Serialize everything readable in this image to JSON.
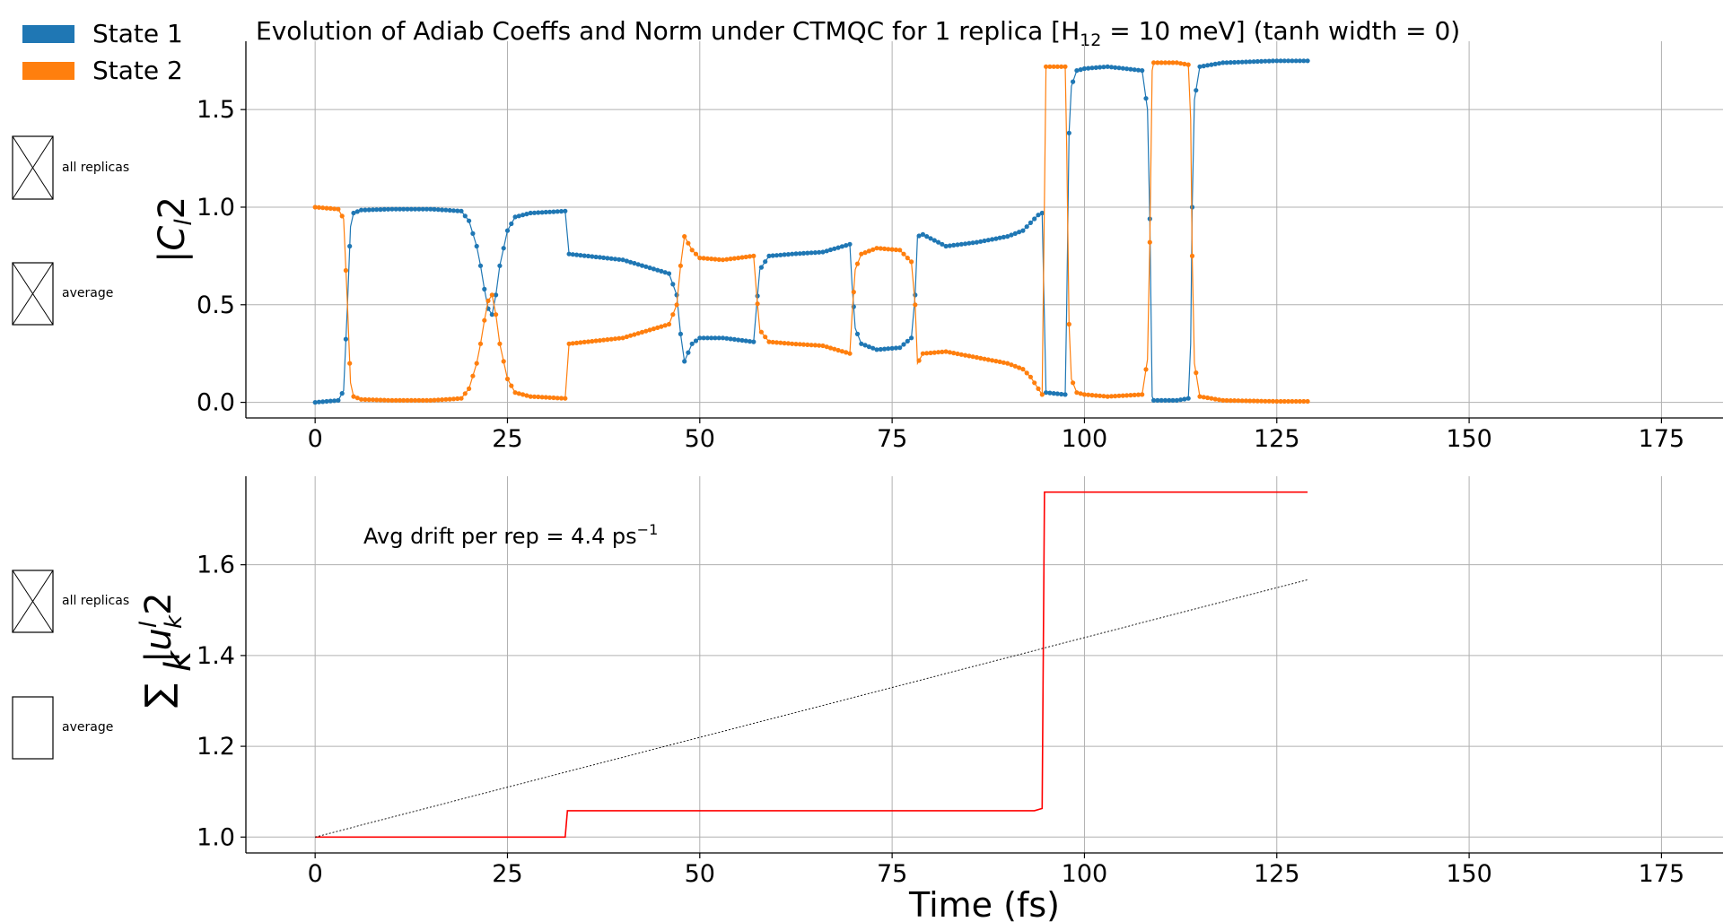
{
  "legend": [
    {
      "label": "State 1",
      "color": "#1f77b4"
    },
    {
      "label": "State 2",
      "color": "#ff7f0e"
    }
  ],
  "checkboxes": {
    "top": [
      {
        "label": "all replicas",
        "checked": true
      },
      {
        "label": "average",
        "checked": true
      }
    ],
    "bottom": [
      {
        "label": "all replicas",
        "checked": true
      },
      {
        "label": "average",
        "checked": false
      }
    ]
  },
  "colors": {
    "state1": "#1f77b4",
    "state2": "#ff7f0e",
    "norm": "#ff0000",
    "trend": "#000000"
  },
  "chart_data": [
    {
      "type": "line",
      "title_main": "Evolution of Adiab Coeffs and Norm under CTMQC for 1 replica [H",
      "title_sub": "12",
      "title_rest": " = 10 meV]   (tanh width = 0)",
      "ylabel_base": "|C",
      "ylabel_sub": "l",
      "ylabel_sup": "2",
      "xlim": [
        -9,
        183
      ],
      "ylim": [
        -0.08,
        1.85
      ],
      "xticks": [
        0,
        25,
        50,
        75,
        100,
        125,
        150,
        175
      ],
      "yticks": [
        0.0,
        0.5,
        1.0,
        1.5
      ],
      "ytick_labels": [
        "0.0",
        "0.5",
        "1.0",
        "1.5"
      ],
      "grid": true,
      "markers": true,
      "series": [
        {
          "name": "State 1",
          "x": [
            0,
            3,
            3.7,
            4.2,
            4.6,
            5,
            6,
            10,
            15,
            19,
            20,
            21,
            21.5,
            22,
            22.5,
            23,
            23.5,
            24,
            25,
            26,
            28,
            32.5,
            33,
            40,
            46,
            47,
            47.5,
            48,
            49,
            50,
            53,
            57,
            57.4,
            57.8,
            59,
            62,
            66,
            69.5,
            69.8,
            70.2,
            71,
            73,
            76,
            77.5,
            78,
            78.3,
            79,
            82,
            86,
            90,
            92,
            93,
            94,
            94.5,
            95,
            97.5,
            97.7,
            98,
            98.3,
            99,
            100,
            103,
            107.5,
            108.2,
            108.5,
            108.8,
            109,
            112,
            113.5,
            113.8,
            114,
            114.3,
            115,
            118,
            125,
            129
          ],
          "y": [
            0.0,
            0.01,
            0.06,
            0.5,
            0.9,
            0.97,
            0.985,
            0.99,
            0.99,
            0.98,
            0.93,
            0.8,
            0.7,
            0.58,
            0.48,
            0.45,
            0.55,
            0.7,
            0.88,
            0.95,
            0.97,
            0.98,
            0.76,
            0.73,
            0.66,
            0.55,
            0.35,
            0.21,
            0.3,
            0.33,
            0.33,
            0.31,
            0.5,
            0.68,
            0.75,
            0.76,
            0.77,
            0.81,
            0.6,
            0.38,
            0.3,
            0.27,
            0.28,
            0.33,
            0.55,
            0.85,
            0.86,
            0.8,
            0.82,
            0.85,
            0.88,
            0.92,
            0.96,
            0.97,
            0.05,
            0.04,
            0.5,
            1.38,
            1.62,
            1.7,
            1.71,
            1.72,
            1.7,
            1.5,
            0.94,
            0.03,
            0.01,
            0.01,
            0.02,
            0.3,
            1.0,
            1.55,
            1.72,
            1.74,
            1.75,
            1.75
          ]
        },
        {
          "name": "State 2",
          "x": [
            0,
            3,
            3.7,
            4.2,
            4.6,
            5,
            6,
            10,
            15,
            19,
            20,
            21,
            21.5,
            22,
            22.5,
            23,
            23.5,
            24,
            25,
            26,
            28,
            32.5,
            33,
            40,
            46,
            47,
            47.5,
            48,
            49,
            50,
            53,
            57,
            57.4,
            57.8,
            59,
            62,
            66,
            69.5,
            69.8,
            70.2,
            71,
            73,
            76,
            77.5,
            78,
            78.3,
            79,
            82,
            86,
            90,
            92,
            93,
            94,
            94.5,
            95,
            97.5,
            97.7,
            98,
            98.3,
            99,
            100,
            103,
            107.5,
            108.2,
            108.5,
            108.8,
            109,
            112,
            113.5,
            113.8,
            114,
            114.3,
            115,
            118,
            125,
            129
          ],
          "y": [
            1.0,
            0.99,
            0.94,
            0.5,
            0.1,
            0.03,
            0.015,
            0.01,
            0.01,
            0.02,
            0.07,
            0.2,
            0.3,
            0.42,
            0.52,
            0.55,
            0.45,
            0.3,
            0.12,
            0.05,
            0.03,
            0.02,
            0.3,
            0.33,
            0.4,
            0.5,
            0.7,
            0.85,
            0.78,
            0.74,
            0.73,
            0.75,
            0.55,
            0.37,
            0.31,
            0.3,
            0.29,
            0.25,
            0.45,
            0.68,
            0.76,
            0.79,
            0.78,
            0.72,
            0.5,
            0.2,
            0.25,
            0.26,
            0.23,
            0.2,
            0.17,
            0.13,
            0.07,
            0.04,
            1.72,
            1.72,
            1.3,
            0.4,
            0.12,
            0.05,
            0.04,
            0.03,
            0.04,
            0.22,
            0.82,
            1.7,
            1.74,
            1.74,
            1.73,
            1.45,
            0.75,
            0.2,
            0.03,
            0.01,
            0.005,
            0.005
          ]
        }
      ]
    },
    {
      "type": "line",
      "xlabel": "Time (fs)",
      "ylabel_sum": "∑",
      "ylabel_subk": "k",
      "ylabel_base": "|u",
      "ylabel_sup_l": "l",
      "ylabel_sub_k": "k",
      "ylabel_sup2": "2",
      "annotation_main": "Avg drift per rep = 4.4 ps",
      "annotation_sup": "−1",
      "xlim": [
        -9,
        183
      ],
      "ylim": [
        0.965,
        1.795
      ],
      "xticks": [
        0,
        25,
        50,
        75,
        100,
        125,
        150,
        175
      ],
      "yticks": [
        1.0,
        1.2,
        1.4,
        1.6
      ],
      "ytick_labels": [
        "1.0",
        "1.2",
        "1.4",
        "1.6"
      ],
      "grid": true,
      "series": [
        {
          "name": "norm",
          "style": "solid",
          "x": [
            0,
            32.5,
            32.8,
            93.5,
            94.5,
            94.8,
            129
          ],
          "y": [
            1.0,
            1.0,
            1.058,
            1.058,
            1.063,
            1.76,
            1.76
          ]
        },
        {
          "name": "drift trend",
          "style": "dotted",
          "x": [
            0,
            129
          ],
          "y": [
            1.0,
            1.567
          ]
        }
      ]
    }
  ]
}
